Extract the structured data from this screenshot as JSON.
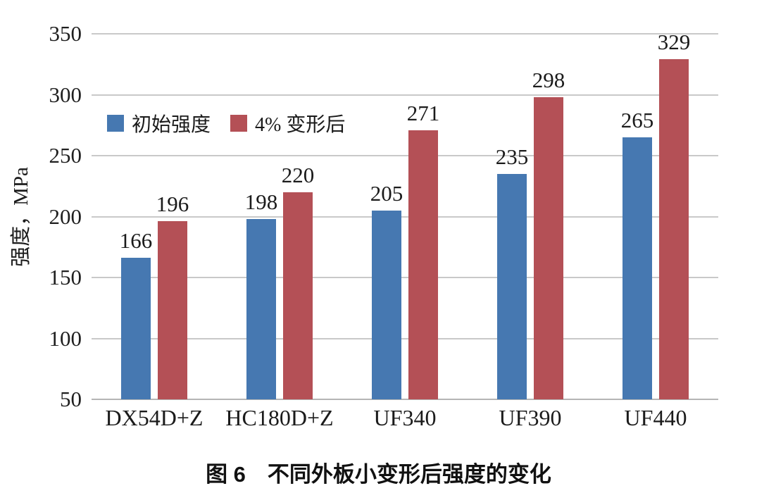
{
  "caption": "图 6　不同外板小变形后强度的变化",
  "colors": {
    "series_initial": "#4678b1",
    "series_deformed": "#b45056",
    "gridline": "#c9c9c9",
    "axis_line": "#b5b5b5",
    "text": "#1b1b1b"
  },
  "chart_data": {
    "type": "bar",
    "title": "图 6　不同外板小变形后强度的变化",
    "xlabel": "",
    "ylabel": "强度，MPa",
    "ylim": [
      50,
      350
    ],
    "yticks": [
      50,
      100,
      150,
      200,
      250,
      300,
      350
    ],
    "grid": true,
    "legend_position": "inside-upper-left",
    "data_labels": true,
    "categories": [
      "DX54D+Z",
      "HC180D+Z",
      "UF340",
      "UF390",
      "UF440"
    ],
    "series": [
      {
        "name": "初始强度",
        "color": "#4678b1",
        "values": [
          166,
          198,
          205,
          235,
          265
        ]
      },
      {
        "name": "4% 变形后",
        "color": "#b45056",
        "values": [
          196,
          220,
          271,
          298,
          329
        ]
      }
    ]
  }
}
